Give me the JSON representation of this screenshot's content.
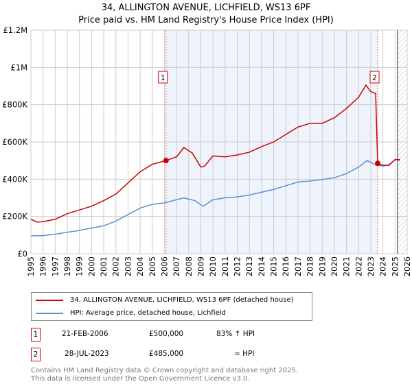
{
  "chart_data": {
    "type": "line",
    "title": "34, ALLINGTON AVENUE, LICHFIELD, WS13 6PF",
    "subtitle": "Price paid vs. HM Land Registry's House Price Index (HPI)",
    "xlim": [
      1995,
      2026
    ],
    "ylim": [
      0,
      1200000
    ],
    "yticks": [
      {
        "v": 0,
        "label": "£0"
      },
      {
        "v": 200000,
        "label": "£200K"
      },
      {
        "v": 400000,
        "label": "£400K"
      },
      {
        "v": 600000,
        "label": "£600K"
      },
      {
        "v": 800000,
        "label": "£800K"
      },
      {
        "v": 1000000,
        "label": "£1M"
      },
      {
        "v": 1200000,
        "label": "£1.2M"
      }
    ],
    "xticks": [
      "1995",
      "1996",
      "1997",
      "1998",
      "1999",
      "2000",
      "2001",
      "2002",
      "2003",
      "2004",
      "2005",
      "2006",
      "2007",
      "2008",
      "2009",
      "2010",
      "2011",
      "2012",
      "2013",
      "2014",
      "2015",
      "2016",
      "2017",
      "2018",
      "2019",
      "2020",
      "2021",
      "2022",
      "2023",
      "2024",
      "2025",
      "2026"
    ],
    "series": [
      {
        "name": "34, ALLINGTON AVENUE, LICHFIELD, WS13 6PF (detached house)",
        "color": "#cc0000",
        "x": [
          1995,
          1995.5,
          1996,
          1997,
          1998,
          1999,
          2000,
          2001,
          2002,
          2003,
          2004,
          2005,
          2006.13,
          2007,
          2007.6,
          2008.3,
          2009,
          2009.3,
          2010,
          2011,
          2012,
          2013,
          2014,
          2015,
          2016,
          2017,
          2018,
          2019,
          2020,
          2021,
          2022,
          2022.6,
          2023,
          2023.4,
          2023.57,
          2024,
          2024.5,
          2025,
          2025.4
        ],
        "y": [
          185000,
          170000,
          172000,
          185000,
          215000,
          235000,
          255000,
          285000,
          320000,
          380000,
          440000,
          480000,
          500000,
          520000,
          570000,
          540000,
          465000,
          470000,
          525000,
          520000,
          530000,
          545000,
          575000,
          600000,
          640000,
          680000,
          700000,
          700000,
          730000,
          780000,
          840000,
          905000,
          870000,
          860000,
          485000,
          475000,
          475000,
          505000,
          505000
        ]
      },
      {
        "name": "HPI: Average price, detached house, Lichfield",
        "color": "#5b8fd6",
        "x": [
          1995,
          1996,
          1997,
          1998,
          1999,
          2000,
          2001,
          2002,
          2003,
          2004,
          2005,
          2006,
          2007,
          2007.6,
          2008.5,
          2009.2,
          2010,
          2011,
          2012,
          2013,
          2014,
          2015,
          2016,
          2017,
          2018,
          2019,
          2020,
          2021,
          2022,
          2022.7,
          2023.3,
          2024,
          2024.5,
          2025,
          2025.4
        ],
        "y": [
          96000,
          97000,
          105000,
          115000,
          125000,
          138000,
          150000,
          175000,
          210000,
          245000,
          265000,
          273000,
          290000,
          300000,
          285000,
          255000,
          290000,
          300000,
          305000,
          315000,
          330000,
          345000,
          365000,
          385000,
          390000,
          398000,
          408000,
          430000,
          465000,
          500000,
          480000,
          470000,
          478000,
          505000,
          500000
        ]
      }
    ],
    "annotations": [
      {
        "label": "1",
        "x": 2006.13,
        "y": 500000
      },
      {
        "label": "2",
        "x": 2023.57,
        "y": 485000
      }
    ],
    "forecast_hatch_from": 2025.2
  },
  "legend": {
    "items": [
      {
        "label": "34, ALLINGTON AVENUE, LICHFIELD, WS13 6PF (detached house)",
        "color": "#cc0000"
      },
      {
        "label": "HPI: Average price, detached house, Lichfield",
        "color": "#5b8fd6"
      }
    ]
  },
  "transactions": [
    {
      "num": "1",
      "date": "21-FEB-2006",
      "price": "£500,000",
      "hpi": "83% ↑ HPI"
    },
    {
      "num": "2",
      "date": "28-JUL-2023",
      "price": "£485,000",
      "hpi": "≈ HPI"
    }
  ],
  "footer": {
    "line1": "Contains HM Land Registry data © Crown copyright and database right 2025.",
    "line2": "This data is licensed under the Open Government Licence v3.0."
  }
}
